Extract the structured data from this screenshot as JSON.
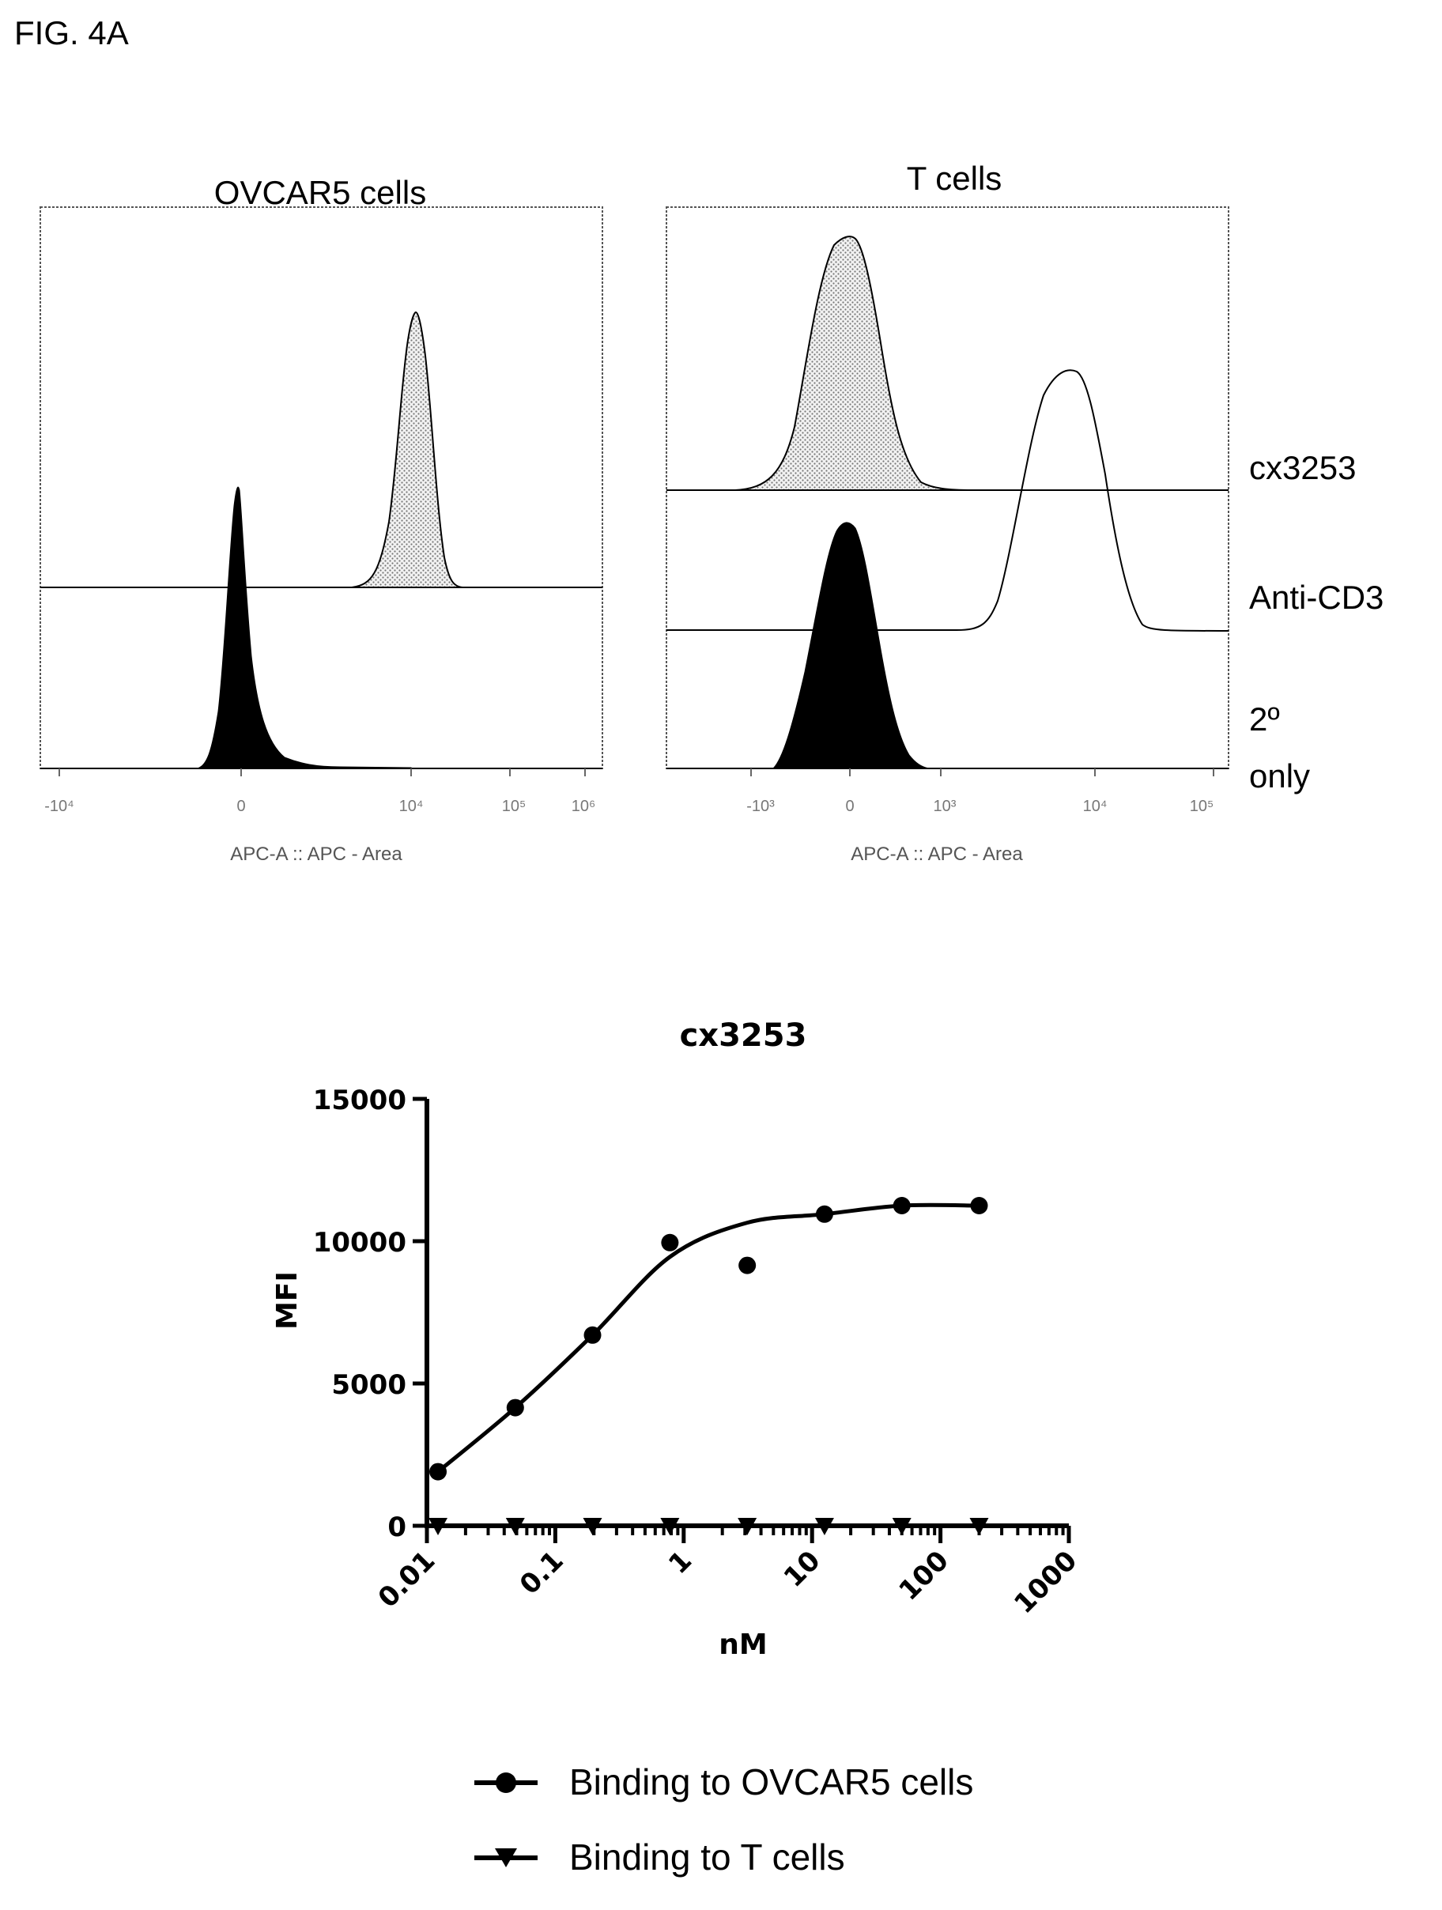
{
  "figure_label": "FIG. 4A",
  "histograms": {
    "ovcar5": {
      "title": "OVCAR5 cells",
      "xlabel": "APC-A :: APC - Area",
      "ticks": [
        "-10⁴",
        "0",
        "10⁴",
        "10⁵",
        "10⁶"
      ]
    },
    "tcells": {
      "title": "T cells",
      "xlabel": "APC-A :: APC - Area",
      "ticks": [
        "-10³",
        "0",
        "10³",
        "10⁴",
        "10⁵"
      ]
    },
    "row_labels": {
      "cx3253": "cx3253",
      "anti_cd3": "Anti-CD3",
      "secondary_line1": "2º",
      "secondary_line2": "only"
    }
  },
  "chart_data": {
    "type": "scatter",
    "title": "cx3253",
    "xlabel": "nM",
    "ylabel": "MFI",
    "xscale": "log",
    "xlim": [
      0.01,
      1000
    ],
    "ylim": [
      0,
      15000
    ],
    "x_tick_labels": [
      "0.01",
      "0.1",
      "1",
      "10",
      "100",
      "1000"
    ],
    "y_tick_labels": [
      "0",
      "5000",
      "10000",
      "15000"
    ],
    "series": [
      {
        "name": "Binding to OVCAR5 cells",
        "marker": "circle",
        "x": [
          0.0122,
          0.0488,
          0.195,
          0.781,
          3.125,
          12.5,
          50,
          200
        ],
        "y": [
          1900,
          4150,
          6700,
          9950,
          9150,
          10950,
          11250,
          11250
        ],
        "fit": "sigmoidal"
      },
      {
        "name": "Binding to T cells",
        "marker": "triangle-down",
        "x": [
          0.0122,
          0.0488,
          0.195,
          0.781,
          3.125,
          12.5,
          50,
          200
        ],
        "y": [
          0,
          0,
          0,
          0,
          0,
          0,
          0,
          0
        ]
      }
    ],
    "legend_position": "bottom"
  }
}
